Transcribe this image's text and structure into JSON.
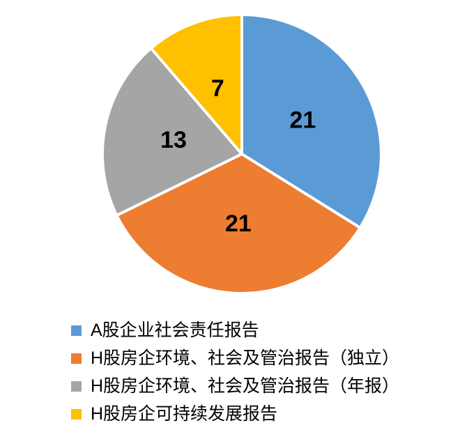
{
  "chart_data": {
    "type": "pie",
    "title": "",
    "labels": [
      "A股企业社会责任报告",
      "H股房企环境、社会及管治报告（独立）",
      "H股房企环境、社会及管治报告（年报）",
      "H股房企可持续发展报告"
    ],
    "values": [
      21,
      21,
      13,
      7
    ],
    "data_labels": [
      "21",
      "21",
      "13",
      "7"
    ],
    "colors": [
      "#5B9BD5",
      "#ED7D31",
      "#A5A5A5",
      "#FFC000"
    ],
    "slice_border_color": "#FFFFFF",
    "start_angle_deg": 0,
    "direction": "clockwise",
    "label_radius_ratio": 0.5,
    "legend_position": "bottom-left",
    "background_color": "#FFFFFF"
  }
}
